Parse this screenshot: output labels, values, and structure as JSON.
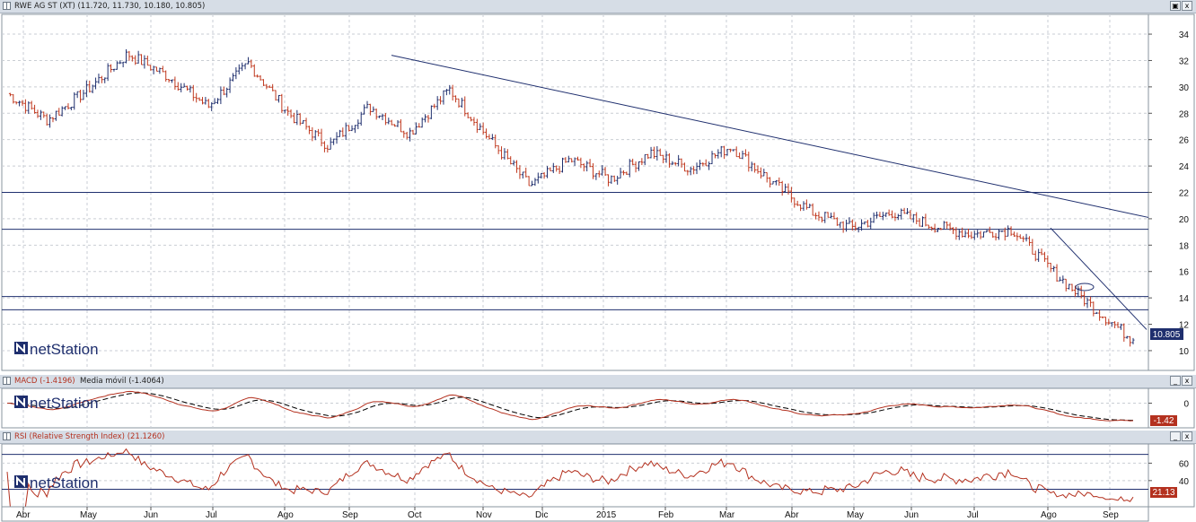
{
  "panels": {
    "price": {
      "title": "RWE AG ST (XT) (11.720, 11.730, 10.180, 10.805)",
      "last_label": "10.805",
      "watermark": "netStation"
    },
    "macd": {
      "title_a": "MACD (-1.4196)",
      "title_b": "Media móvil (-1.4064)",
      "last_label": "-1.42",
      "watermark": "netStation"
    },
    "rsi": {
      "title": "RSI (Relative Strength Index) (21.1260)",
      "last_label": "21.13",
      "watermark": "netStation"
    }
  },
  "buttons": {
    "restore": "▣",
    "min": "_",
    "close": "x"
  },
  "colors": {
    "up": "#1f2f6e",
    "down": "#c0391f",
    "trend": "#1f2f6e",
    "macd": "#b4311f",
    "signal": "#000000",
    "rsi": "#b4311f",
    "header": "#d6dde6",
    "last_price_bg": "#1f2f6e",
    "last_ind_bg": "#b4311f"
  },
  "chart_data": [
    {
      "type": "candlestick",
      "title": "RWE AG ST (XT)",
      "x_labels": [
        "Abr",
        "May",
        "Jun",
        "Jul",
        "Ago",
        "Sep",
        "Oct",
        "Nov",
        "Dic",
        "2015",
        "Feb",
        "Mar",
        "Abr",
        "May",
        "Jun",
        "Jul",
        "Ago",
        "Sep"
      ],
      "ylim": [
        8.5,
        35.5
      ],
      "yticks": [
        10,
        12,
        14,
        16,
        18,
        20,
        22,
        24,
        26,
        28,
        30,
        32,
        34
      ],
      "ohlc_last": {
        "open": 11.72,
        "high": 11.73,
        "low": 10.18,
        "close": 10.805
      },
      "trend_anchors": [
        {
          "period": "Abr",
          "close": 29.5
        },
        {
          "period": "May",
          "close": 27.5
        },
        {
          "period": "Jun",
          "close": 29.8
        },
        {
          "period": "Jul",
          "close": 32.5
        },
        {
          "period": "Jul",
          "close": 30.8
        },
        {
          "period": "Ago",
          "close": 28.5
        },
        {
          "period": "Sep",
          "close": 31.8
        },
        {
          "period": "Oct",
          "close": 28.0
        },
        {
          "period": "Oct",
          "close": 25.5
        },
        {
          "period": "Nov",
          "close": 28.5
        },
        {
          "period": "Nov",
          "close": 26.5
        },
        {
          "period": "Dic",
          "close": 29.8
        },
        {
          "period": "Dic",
          "close": 26.0
        },
        {
          "period": "2015",
          "close": 22.5
        },
        {
          "period": "Feb",
          "close": 24.5
        },
        {
          "period": "Feb",
          "close": 23.0
        },
        {
          "period": "Mar",
          "close": 25.0
        },
        {
          "period": "Mar",
          "close": 23.8
        },
        {
          "period": "Abr",
          "close": 25.5
        },
        {
          "period": "May",
          "close": 22.8
        },
        {
          "period": "Jun",
          "close": 20.5
        },
        {
          "period": "Jun",
          "close": 19.3
        },
        {
          "period": "Jul",
          "close": 20.5
        },
        {
          "period": "Jul",
          "close": 19.5
        },
        {
          "period": "Ago",
          "close": 18.8
        },
        {
          "period": "Ago",
          "close": 19.2
        },
        {
          "period": "Ago",
          "close": 16.0
        },
        {
          "period": "Sep",
          "close": 13.3
        },
        {
          "period": "Sep",
          "close": 10.8
        }
      ],
      "horizontal_levels": [
        22.0,
        19.2,
        14.1,
        13.1
      ],
      "trendlines": [
        {
          "from": {
            "period": "Sep",
            "value": 32.4
          },
          "to": {
            "period": "end",
            "value": 20.1
          }
        },
        {
          "from": {
            "period": "Ago",
            "value": 19.3
          },
          "to": {
            "period": "end",
            "value": 11.6
          }
        }
      ],
      "last_value": 10.805
    },
    {
      "type": "line",
      "title": "MACD",
      "series": [
        {
          "name": "MACD",
          "last": -1.4196
        },
        {
          "name": "Media móvil",
          "last": -1.4064
        }
      ],
      "yticks": [
        0
      ],
      "ylim": [
        -2.0,
        1.2
      ],
      "last_value": -1.42
    },
    {
      "type": "line",
      "title": "RSI (Relative Strength Index)",
      "ylim": [
        10,
        82
      ],
      "yticks": [
        40,
        60
      ],
      "reference_lines": [
        30,
        70
      ],
      "last_value": 21.126
    }
  ]
}
